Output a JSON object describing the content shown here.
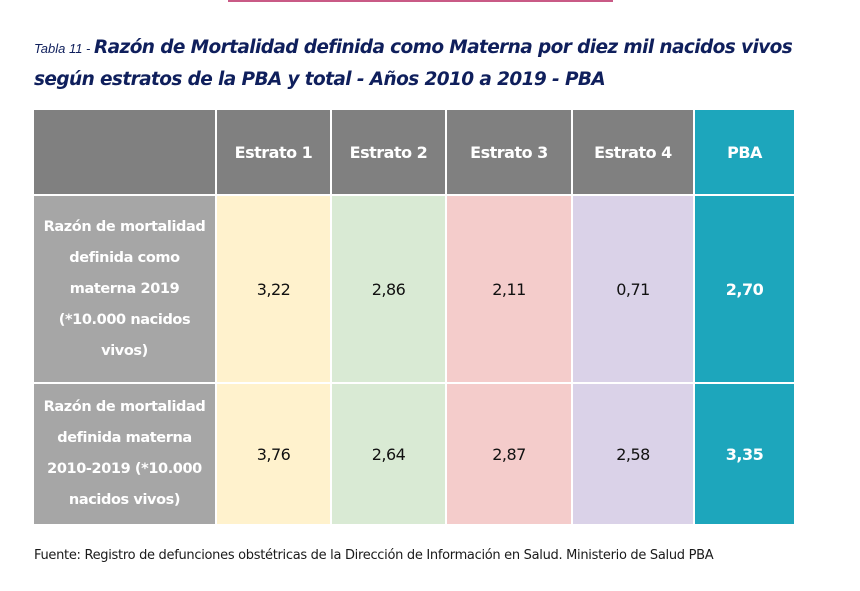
{
  "title": {
    "prefix": "Tabla 11 - ",
    "main_line1": "Razón de Mortalidad definida como Materna por diez mil nacidos vivos",
    "main_line2": "según estratos de la PBA y total - Años 2010 a 2019 - PBA"
  },
  "table": {
    "headers": [
      "",
      "Estrato 1",
      "Estrato 2",
      "Estrato 3",
      "Estrato 4",
      "PBA"
    ],
    "rows": [
      {
        "label": "Razón de mortalidad definida como materna 2019 (*10.000 nacidos vivos)",
        "values": [
          "3,22",
          "2,86",
          "2,11",
          "0,71",
          "2,70"
        ]
      },
      {
        "label": "Razón de mortalidad definida materna 2010-2019 (*10.000 nacidos vivos)",
        "values": [
          "3,76",
          "2,64",
          "2,87",
          "2,58",
          "3,35"
        ]
      }
    ]
  },
  "colors": {
    "title": "#0f1f5c",
    "header_gray": "#808080",
    "label_gray": "#a6a6a6",
    "estrato1": "#fff2cd",
    "estrato2": "#d9ead4",
    "estrato3": "#f4cccb",
    "estrato4": "#dad2e8",
    "pba": "#1da6bc",
    "accent_bar": "#c95a86"
  },
  "source": "Fuente: Registro de defunciones obstétricas de la Dirección de Información en Salud. Ministerio de Salud PBA"
}
